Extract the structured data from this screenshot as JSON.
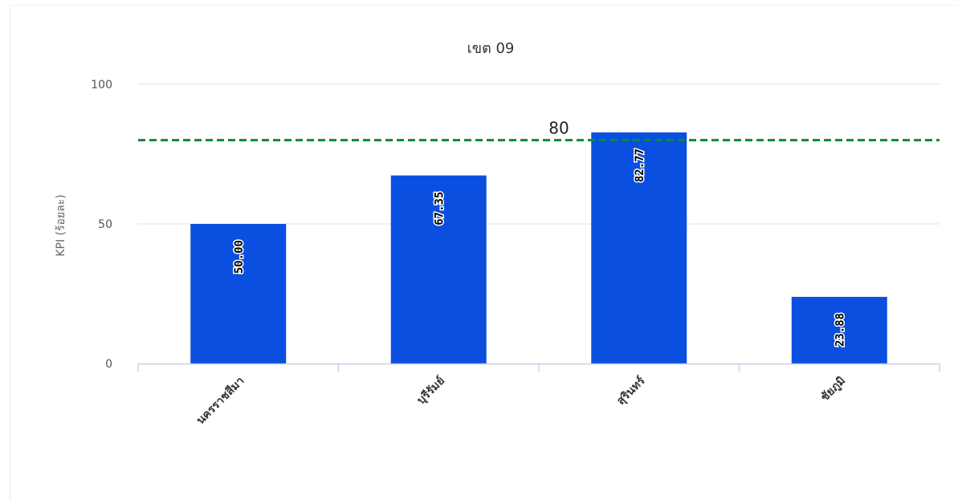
{
  "chart_data": {
    "type": "bar",
    "title": "เขต 09",
    "ylabel": "KPI (ร้อยละ)",
    "xlabel": "",
    "categories": [
      "นครราชสีมา",
      "บุรีรัมย์",
      "สุรินทร์",
      "ชัยภูมิ"
    ],
    "series": [
      {
        "values": [
          50.0,
          67.35,
          82.77,
          23.88
        ],
        "data_labels": [
          "50.00",
          "67.35",
          "82.77",
          "23.88"
        ],
        "color": "#0a4fdf"
      }
    ],
    "ylim": [
      0,
      100
    ],
    "yticks": [
      "0",
      "50",
      "100"
    ],
    "reference_line": {
      "value": 80,
      "label": "80",
      "color": "#0a8a3a",
      "style": "dashed"
    },
    "grid": true,
    "legend": "none"
  }
}
